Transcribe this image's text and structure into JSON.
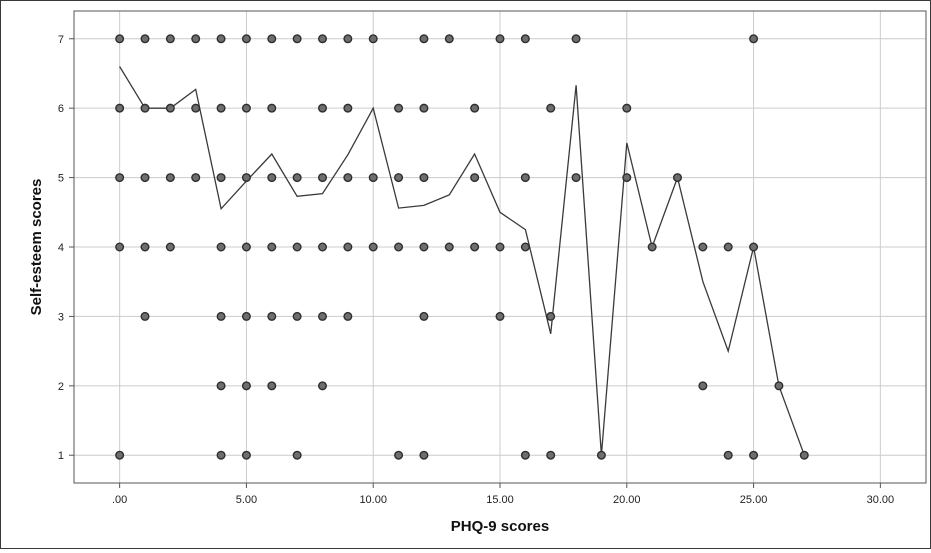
{
  "chart_data": {
    "type": "scatter",
    "title": "",
    "xlabel": "PHQ-9 scores",
    "ylabel": "Self-esteem scores",
    "xlim": [
      -1.8,
      31.8
    ],
    "ylim": [
      0.6,
      7.4
    ],
    "x_ticks": [
      0,
      5,
      10,
      15,
      20,
      25,
      30
    ],
    "x_tick_labels": [
      ".00",
      "5.00",
      "10.00",
      "15.00",
      "20.00",
      "25.00",
      "30.00"
    ],
    "y_ticks": [
      1,
      2,
      3,
      4,
      5,
      6,
      7
    ],
    "y_tick_labels": [
      "1",
      "2",
      "3",
      "4",
      "5",
      "6",
      "7"
    ],
    "grid": true,
    "legend": "none",
    "points": [
      [
        0,
        7
      ],
      [
        1,
        7
      ],
      [
        2,
        7
      ],
      [
        3,
        7
      ],
      [
        4,
        7
      ],
      [
        5,
        7
      ],
      [
        6,
        7
      ],
      [
        7,
        7
      ],
      [
        8,
        7
      ],
      [
        9,
        7
      ],
      [
        10,
        7
      ],
      [
        12,
        7
      ],
      [
        13,
        7
      ],
      [
        15,
        7
      ],
      [
        16,
        7
      ],
      [
        18,
        7
      ],
      [
        25,
        7
      ],
      [
        0,
        6
      ],
      [
        1,
        6
      ],
      [
        2,
        6
      ],
      [
        3,
        6
      ],
      [
        4,
        6
      ],
      [
        5,
        6
      ],
      [
        6,
        6
      ],
      [
        8,
        6
      ],
      [
        9,
        6
      ],
      [
        11,
        6
      ],
      [
        12,
        6
      ],
      [
        14,
        6
      ],
      [
        17,
        6
      ],
      [
        20,
        6
      ],
      [
        0,
        5
      ],
      [
        1,
        5
      ],
      [
        2,
        5
      ],
      [
        3,
        5
      ],
      [
        4,
        5
      ],
      [
        5,
        5
      ],
      [
        6,
        5
      ],
      [
        7,
        5
      ],
      [
        8,
        5
      ],
      [
        9,
        5
      ],
      [
        10,
        5
      ],
      [
        11,
        5
      ],
      [
        12,
        5
      ],
      [
        14,
        5
      ],
      [
        16,
        5
      ],
      [
        18,
        5
      ],
      [
        20,
        5
      ],
      [
        22,
        5
      ],
      [
        0,
        4
      ],
      [
        1,
        4
      ],
      [
        2,
        4
      ],
      [
        4,
        4
      ],
      [
        5,
        4
      ],
      [
        6,
        4
      ],
      [
        7,
        4
      ],
      [
        8,
        4
      ],
      [
        9,
        4
      ],
      [
        10,
        4
      ],
      [
        11,
        4
      ],
      [
        12,
        4
      ],
      [
        13,
        4
      ],
      [
        14,
        4
      ],
      [
        15,
        4
      ],
      [
        16,
        4
      ],
      [
        21,
        4
      ],
      [
        23,
        4
      ],
      [
        24,
        4
      ],
      [
        25,
        4
      ],
      [
        1,
        3
      ],
      [
        4,
        3
      ],
      [
        5,
        3
      ],
      [
        6,
        3
      ],
      [
        7,
        3
      ],
      [
        8,
        3
      ],
      [
        9,
        3
      ],
      [
        12,
        3
      ],
      [
        15,
        3
      ],
      [
        17,
        3
      ],
      [
        4,
        2
      ],
      [
        5,
        2
      ],
      [
        6,
        2
      ],
      [
        8,
        2
      ],
      [
        23,
        2
      ],
      [
        26,
        2
      ],
      [
        0,
        1
      ],
      [
        4,
        1
      ],
      [
        5,
        1
      ],
      [
        7,
        1
      ],
      [
        11,
        1
      ],
      [
        12,
        1
      ],
      [
        16,
        1
      ],
      [
        17,
        1
      ],
      [
        19,
        1
      ],
      [
        24,
        1
      ],
      [
        25,
        1
      ],
      [
        27,
        1
      ]
    ],
    "mean_line": {
      "x": [
        0,
        1,
        2,
        3,
        4,
        5,
        6,
        7,
        8,
        9,
        10,
        11,
        12,
        13,
        14,
        15,
        16,
        17,
        18,
        19,
        20,
        21,
        22,
        23,
        24,
        25,
        26,
        27
      ],
      "y": [
        6.6,
        6.0,
        6.0,
        6.27,
        4.55,
        4.95,
        5.34,
        4.73,
        4.77,
        5.33,
        6.0,
        4.56,
        4.6,
        4.75,
        5.34,
        4.5,
        4.25,
        2.75,
        6.33,
        1.0,
        5.5,
        4.0,
        5.0,
        3.5,
        2.5,
        4.0,
        2.0,
        1.0
      ]
    },
    "colors": {
      "point_fill": "#6e6e6e",
      "point_stroke": "#2e2e2e",
      "line": "#3a3a3a",
      "grid": "#cccccc",
      "axis": "#555555"
    }
  }
}
